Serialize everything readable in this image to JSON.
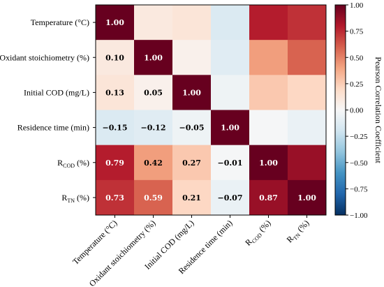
{
  "chart_data": {
    "type": "heatmap",
    "row_labels": [
      {
        "main": "Temperature (°C)",
        "sub": "",
        "tail": ""
      },
      {
        "main": "Oxidant stoichiometry (%)",
        "sub": "",
        "tail": ""
      },
      {
        "main": "Initial COD (mg/L)",
        "sub": "",
        "tail": ""
      },
      {
        "main": "Residence time (min)",
        "sub": "",
        "tail": ""
      },
      {
        "main": "R",
        "sub": "COD",
        "tail": " (%)"
      },
      {
        "main": "R",
        "sub": "TN",
        "tail": " (%)"
      }
    ],
    "col_labels": [
      {
        "main": "Temperature (°C)",
        "sub": "",
        "tail": ""
      },
      {
        "main": "Oxidant stoichiometry (%)",
        "sub": "",
        "tail": ""
      },
      {
        "main": "Initial COD (mg/L)",
        "sub": "",
        "tail": ""
      },
      {
        "main": "Residence time (min)",
        "sub": "",
        "tail": ""
      },
      {
        "main": "R",
        "sub": "COD",
        "tail": " (%)"
      },
      {
        "main": "R",
        "sub": "TN",
        "tail": " (%)"
      }
    ],
    "values": [
      [
        1.0,
        0.1,
        0.13,
        -0.15,
        0.79,
        0.73
      ],
      [
        0.1,
        1.0,
        0.05,
        -0.12,
        0.42,
        0.59
      ],
      [
        0.13,
        0.05,
        1.0,
        -0.05,
        0.27,
        0.21
      ],
      [
        -0.15,
        -0.12,
        -0.05,
        1.0,
        -0.01,
        -0.07
      ],
      [
        0.79,
        0.42,
        0.27,
        -0.01,
        1.0,
        0.87
      ],
      [
        0.73,
        0.59,
        0.21,
        -0.07,
        0.87,
        1.0
      ]
    ],
    "shown_labels": [
      [
        true,
        false,
        false,
        false,
        false,
        false
      ],
      [
        true,
        true,
        false,
        false,
        false,
        false
      ],
      [
        true,
        true,
        true,
        false,
        false,
        false
      ],
      [
        true,
        true,
        true,
        true,
        false,
        false
      ],
      [
        true,
        true,
        true,
        true,
        true,
        false
      ],
      [
        true,
        true,
        true,
        true,
        true,
        true
      ]
    ],
    "colorbar": {
      "label": "Pearson Correlation Coefficient",
      "range": [
        -1,
        1
      ],
      "ticks": [
        "1.00",
        "0.75",
        "0.50",
        "0.25",
        "0.00",
        "−0.25",
        "−0.50",
        "−0.75",
        "−1.00"
      ]
    },
    "colormap": "RdBu_r"
  }
}
